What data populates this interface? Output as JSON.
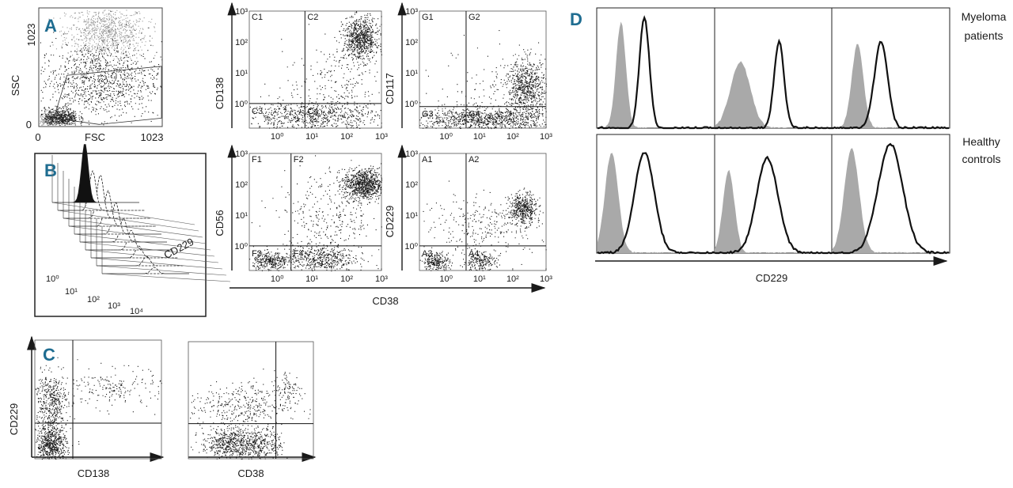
{
  "colors": {
    "panel_label": "#1f6d91",
    "dots": "#1a1a1a",
    "isotype_fill": "#a9a9a9"
  },
  "chart_data": [
    {
      "panel": "A",
      "type": "scatter",
      "xlabel": "FSC",
      "ylabel": "SSC",
      "xticks": [
        "0",
        "1023"
      ],
      "yticks": [
        "0",
        "1023"
      ],
      "xlim": [
        0,
        1023
      ],
      "ylim": [
        0,
        1023
      ],
      "clusters": [
        {
          "x": 560,
          "y": 820,
          "sx": 170,
          "sy": 120,
          "n": 900,
          "shade": "light"
        },
        {
          "x": 500,
          "y": 400,
          "sx": 260,
          "sy": 170,
          "n": 1100,
          "shade": "dark"
        },
        {
          "x": 180,
          "y": 70,
          "sx": 70,
          "sy": 40,
          "n": 500,
          "shade": "dark"
        },
        {
          "x": 80,
          "y": 40,
          "sx": 60,
          "sy": 40,
          "n": 300,
          "shade": "light"
        }
      ],
      "gate": [
        [
          120,
          60
        ],
        [
          230,
          440
        ],
        [
          1023,
          520
        ],
        [
          1023,
          60
        ],
        [
          500,
          5
        ],
        [
          120,
          60
        ]
      ]
    },
    {
      "panel": "B",
      "type": "histogram-3d",
      "xlabel": "CD229",
      "xticks": [
        "10⁰",
        "10¹",
        "10²",
        "10³",
        "10⁴"
      ],
      "peaks": [
        {
          "center": 1.5,
          "height": 0.75,
          "filled": true
        },
        {
          "center": 1.6,
          "height": 0.5
        },
        {
          "center": 1.7,
          "height": 0.55
        },
        {
          "center": 1.8,
          "height": 0.45
        },
        {
          "center": 1.9,
          "height": 0.4
        },
        {
          "center": 2.0,
          "height": 0.3
        },
        {
          "center": 2.1,
          "height": 0.25
        },
        {
          "center": 2.2,
          "height": 0.15
        },
        {
          "center": 2.3,
          "height": 0.12
        },
        {
          "center": 2.4,
          "height": 0.08
        }
      ]
    },
    {
      "panel": "C1-C4",
      "type": "scatter",
      "ylabel": "CD138",
      "xticks": [
        "10⁰",
        "10¹",
        "10²",
        "10³"
      ],
      "yticks": [
        "10³",
        "10²",
        "10¹",
        "10⁰"
      ],
      "xlim": [
        -0.8,
        3
      ],
      "ylim": [
        -0.8,
        3
      ],
      "quadrants": [
        "C1",
        "C2",
        "C3",
        "C4"
      ],
      "cut": [
        0.8,
        0
      ],
      "clusters": [
        {
          "x": 2.4,
          "y": 2.1,
          "sx": 0.25,
          "sy": 0.35,
          "n": 800
        },
        {
          "x": 1.0,
          "y": -0.4,
          "sx": 1.0,
          "sy": 0.22,
          "n": 700
        },
        {
          "x": 1.8,
          "y": 0.6,
          "sx": 0.8,
          "sy": 0.7,
          "n": 250
        }
      ]
    },
    {
      "panel": "G1-G4",
      "type": "scatter",
      "ylabel": "CD117",
      "xticks": [
        "10⁰",
        "10¹",
        "10²",
        "10³"
      ],
      "yticks": [
        "10³",
        "10²",
        "10¹",
        "10⁰"
      ],
      "xlim": [
        -0.8,
        3
      ],
      "ylim": [
        -0.8,
        3
      ],
      "quadrants": [
        "G1",
        "G2",
        "G3",
        "G4"
      ],
      "cut": [
        0.6,
        -0.1
      ],
      "clusters": [
        {
          "x": 2.4,
          "y": 0.5,
          "sx": 0.3,
          "sy": 0.45,
          "n": 700
        },
        {
          "x": 1.1,
          "y": -0.5,
          "sx": 1.2,
          "sy": 0.18,
          "n": 1000
        },
        {
          "x": 1.7,
          "y": 0.4,
          "sx": 1.0,
          "sy": 0.8,
          "n": 180
        }
      ]
    },
    {
      "panel": "F1-F4",
      "type": "scatter",
      "ylabel": "CD56",
      "xticks": [
        "10⁰",
        "10¹",
        "10²",
        "10³"
      ],
      "yticks": [
        "10³",
        "10²",
        "10¹",
        "10⁰"
      ],
      "xlim": [
        -0.8,
        3
      ],
      "ylim": [
        -0.8,
        3
      ],
      "quadrants": [
        "F1",
        "F2",
        "F3",
        "F4"
      ],
      "cut": [
        0.4,
        0
      ],
      "clusters": [
        {
          "x": 2.5,
          "y": 2.0,
          "sx": 0.3,
          "sy": 0.25,
          "n": 900
        },
        {
          "x": 1.2,
          "y": -0.4,
          "sx": 0.5,
          "sy": 0.22,
          "n": 500
        },
        {
          "x": -0.2,
          "y": -0.5,
          "sx": 0.25,
          "sy": 0.15,
          "n": 300
        },
        {
          "x": 1.5,
          "y": 0.9,
          "sx": 0.8,
          "sy": 0.8,
          "n": 350
        }
      ]
    },
    {
      "panel": "A1-A4",
      "type": "scatter",
      "ylabel": "CD229",
      "xticks": [
        "10⁰",
        "10¹",
        "10²",
        "10³"
      ],
      "yticks": [
        "10³",
        "10²",
        "10¹",
        "10⁰"
      ],
      "xlim": [
        -0.8,
        3
      ],
      "ylim": [
        -0.8,
        3
      ],
      "quadrants": [
        "A1",
        "A2",
        "A3",
        "A4"
      ],
      "cut": [
        0.6,
        0
      ],
      "clusters": [
        {
          "x": 2.3,
          "y": 1.2,
          "sx": 0.2,
          "sy": 0.25,
          "n": 450
        },
        {
          "x": -0.3,
          "y": -0.5,
          "sx": 0.2,
          "sy": 0.15,
          "n": 250
        },
        {
          "x": 1.0,
          "y": -0.5,
          "sx": 0.25,
          "sy": 0.15,
          "n": 220
        },
        {
          "x": 1.2,
          "y": 0.7,
          "sx": 1.0,
          "sy": 0.5,
          "n": 300
        }
      ]
    },
    {
      "shared_xlabel": "CD38"
    },
    {
      "panel": "C",
      "type": "scatter",
      "xlabel": "CD138",
      "ylabel": "CD229",
      "xlim": [
        0,
        1
      ],
      "ylim": [
        0,
        1
      ],
      "cut": [
        0.3,
        0.3
      ],
      "clusters": [
        {
          "x": 0.13,
          "y": 0.12,
          "sx": 0.06,
          "sy": 0.08,
          "n": 650
        },
        {
          "x": 0.12,
          "y": 0.48,
          "sx": 0.07,
          "sy": 0.12,
          "n": 450
        },
        {
          "x": 0.65,
          "y": 0.6,
          "sx": 0.2,
          "sy": 0.08,
          "n": 200
        }
      ]
    },
    {
      "panel": "C-right",
      "type": "scatter",
      "xlabel": "CD38",
      "xlim": [
        0,
        1
      ],
      "ylim": [
        0,
        1
      ],
      "cut": [
        0.7,
        0.3
      ],
      "clusters": [
        {
          "x": 0.3,
          "y": 0.13,
          "sx": 0.1,
          "sy": 0.07,
          "n": 450
        },
        {
          "x": 0.55,
          "y": 0.13,
          "sx": 0.1,
          "sy": 0.07,
          "n": 400
        },
        {
          "x": 0.4,
          "y": 0.45,
          "sx": 0.2,
          "sy": 0.1,
          "n": 350
        },
        {
          "x": 0.8,
          "y": 0.58,
          "sx": 0.06,
          "sy": 0.09,
          "n": 100
        }
      ]
    },
    {
      "panel": "D",
      "type": "histogram-overlay",
      "xlabel": "CD229",
      "rows": [
        {
          "title": [
            "Myeloma",
            "patients"
          ],
          "panels": [
            {
              "iso": [
                0.2,
                0.06,
                0.88
              ],
              "stain": [
                0.4,
                0.06,
                0.92
              ]
            },
            {
              "iso": [
                0.22,
                0.12,
                0.55
              ],
              "stain": [
                0.55,
                0.06,
                0.72
              ]
            },
            {
              "iso": [
                0.22,
                0.07,
                0.7
              ],
              "stain": [
                0.42,
                0.08,
                0.72
              ]
            }
          ]
        },
        {
          "title": [
            "Healthy",
            "controls"
          ],
          "panels": [
            {
              "iso": [
                0.12,
                0.08,
                0.85
              ],
              "stain": [
                0.4,
                0.12,
                0.85
              ]
            },
            {
              "iso": [
                0.12,
                0.07,
                0.7
              ],
              "stain": [
                0.45,
                0.13,
                0.8
              ]
            },
            {
              "iso": [
                0.17,
                0.09,
                0.88
              ],
              "stain": [
                0.5,
                0.15,
                0.92
              ]
            }
          ]
        }
      ]
    }
  ],
  "labels": {
    "A": "A",
    "B": "B",
    "C": "C",
    "D": "D"
  }
}
